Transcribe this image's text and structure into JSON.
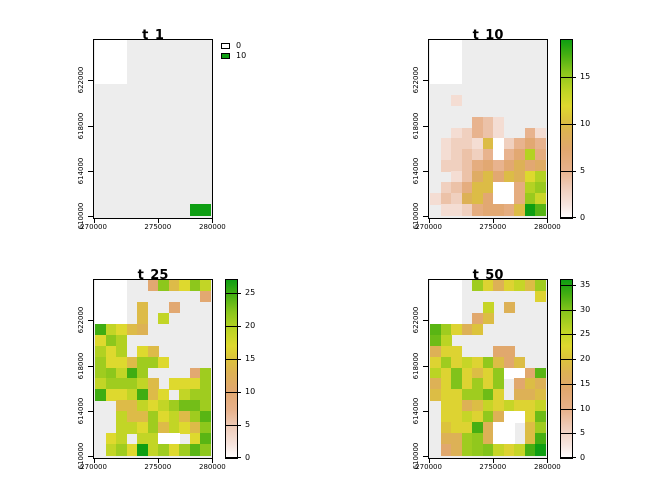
{
  "figure": {
    "background": "#FFFFFF",
    "na_color": "#EDEDED",
    "box_border_color": "#000000",
    "text_color": "#000000"
  },
  "palette_stops": [
    [
      0.0,
      "#FFFFFF"
    ],
    [
      0.08,
      "#F6E3DC"
    ],
    [
      0.17,
      "#EFCDBB"
    ],
    [
      0.27,
      "#E7B18B"
    ],
    [
      0.38,
      "#E1A76F"
    ],
    [
      0.48,
      "#DDB254"
    ],
    [
      0.56,
      "#DCC43B"
    ],
    [
      0.63,
      "#DED92E"
    ],
    [
      0.72,
      "#BCD424"
    ],
    [
      0.82,
      "#8AC61C"
    ],
    [
      0.91,
      "#4AB012"
    ],
    [
      1.0,
      "#0E9E12"
    ]
  ],
  "chart_data": [
    {
      "type": "heatmap",
      "title": "t_1",
      "x_tick_labels": [
        "270000",
        "275000",
        "280000"
      ],
      "y_tick_labels": [
        "610000",
        "614000",
        "618000",
        "622000"
      ],
      "rows": 16,
      "cols": 11,
      "legend": {
        "kind": "classes",
        "max": 10,
        "items": [
          {
            "label": "0",
            "color": "#FFFFFF"
          },
          {
            "label": "10",
            "color": "#0E9E12"
          }
        ]
      },
      "values": [
        [
          0,
          0,
          0,
          null,
          null,
          null,
          null,
          null,
          null,
          null,
          null
        ],
        [
          0,
          0,
          0,
          null,
          null,
          null,
          null,
          null,
          null,
          null,
          null
        ],
        [
          0,
          0,
          0,
          null,
          null,
          null,
          null,
          null,
          null,
          null,
          null
        ],
        [
          0,
          0,
          0,
          null,
          null,
          null,
          null,
          null,
          null,
          null,
          null
        ],
        [
          null,
          null,
          null,
          null,
          null,
          null,
          null,
          null,
          null,
          null,
          null
        ],
        [
          null,
          null,
          null,
          null,
          null,
          null,
          null,
          null,
          null,
          null,
          null
        ],
        [
          null,
          null,
          null,
          null,
          null,
          null,
          null,
          null,
          null,
          null,
          null
        ],
        [
          null,
          null,
          null,
          null,
          null,
          null,
          null,
          null,
          null,
          null,
          null
        ],
        [
          null,
          null,
          null,
          null,
          null,
          null,
          null,
          null,
          null,
          null,
          null
        ],
        [
          null,
          null,
          null,
          null,
          null,
          null,
          null,
          null,
          null,
          null,
          null
        ],
        [
          null,
          null,
          null,
          null,
          null,
          null,
          null,
          null,
          null,
          null,
          null
        ],
        [
          null,
          null,
          null,
          null,
          null,
          null,
          null,
          null,
          null,
          null,
          null
        ],
        [
          null,
          null,
          null,
          null,
          null,
          null,
          null,
          null,
          null,
          null,
          null
        ],
        [
          null,
          null,
          null,
          null,
          null,
          null,
          null,
          null,
          null,
          null,
          null
        ],
        [
          null,
          null,
          null,
          null,
          null,
          null,
          null,
          null,
          null,
          null,
          null
        ],
        [
          null,
          null,
          null,
          null,
          null,
          null,
          null,
          null,
          null,
          10,
          10
        ]
      ]
    },
    {
      "type": "heatmap",
      "title": "t_10",
      "x_tick_labels": [
        "270000",
        "275000",
        "280000"
      ],
      "y_tick_labels": [
        "610000",
        "614000",
        "618000",
        "622000"
      ],
      "rows": 16,
      "cols": 11,
      "legend": {
        "kind": "colorbar",
        "max": 19,
        "ticks": [
          0,
          5,
          10,
          15
        ]
      },
      "values": [
        [
          0,
          0,
          0,
          null,
          null,
          null,
          null,
          null,
          null,
          null,
          null
        ],
        [
          0,
          0,
          0,
          null,
          null,
          null,
          null,
          null,
          null,
          null,
          null
        ],
        [
          0,
          0,
          0,
          null,
          null,
          null,
          null,
          null,
          null,
          null,
          null
        ],
        [
          0,
          0,
          0,
          null,
          null,
          null,
          null,
          null,
          null,
          null,
          null
        ],
        [
          null,
          null,
          null,
          null,
          null,
          null,
          null,
          null,
          null,
          null,
          null
        ],
        [
          null,
          null,
          2,
          null,
          null,
          null,
          null,
          null,
          null,
          null,
          null
        ],
        [
          null,
          null,
          null,
          null,
          null,
          null,
          null,
          null,
          null,
          null,
          null
        ],
        [
          null,
          null,
          null,
          null,
          5,
          4,
          2,
          null,
          null,
          null,
          null
        ],
        [
          null,
          null,
          2,
          3,
          5,
          4,
          2,
          null,
          null,
          5,
          2
        ],
        [
          null,
          2,
          3,
          3,
          2,
          10,
          0,
          3,
          5,
          7,
          5
        ],
        [
          null,
          2,
          3,
          4,
          3,
          5,
          0,
          5,
          7,
          14,
          6
        ],
        [
          null,
          3,
          3,
          4,
          6,
          7,
          5,
          7,
          9,
          7,
          8
        ],
        [
          null,
          null,
          2,
          4,
          8,
          10,
          7,
          10,
          9,
          12,
          14
        ],
        [
          null,
          3,
          4,
          6,
          10,
          10,
          0,
          0,
          6,
          14,
          15
        ],
        [
          2,
          4,
          3,
          9,
          10,
          7,
          0,
          0,
          6,
          15,
          13
        ],
        [
          null,
          2,
          2,
          3,
          6,
          7,
          7,
          6,
          10,
          19,
          17
        ]
      ]
    },
    {
      "type": "heatmap",
      "title": "t_25",
      "x_tick_labels": [
        "270000",
        "275000",
        "280000"
      ],
      "y_tick_labels": [
        "610000",
        "614000",
        "618000",
        "622000"
      ],
      "rows": 16,
      "cols": 11,
      "legend": {
        "kind": "colorbar",
        "max": 27,
        "ticks": [
          0,
          5,
          10,
          15,
          20,
          25
        ]
      },
      "values": [
        [
          0,
          0,
          0,
          null,
          null,
          10,
          22,
          14,
          17,
          22,
          19
        ],
        [
          0,
          0,
          0,
          null,
          null,
          null,
          null,
          null,
          null,
          null,
          10
        ],
        [
          0,
          0,
          0,
          null,
          14,
          null,
          null,
          10,
          null,
          null,
          null
        ],
        [
          0,
          0,
          0,
          null,
          14,
          null,
          19,
          null,
          null,
          null,
          null
        ],
        [
          25,
          19,
          17,
          14,
          13,
          null,
          null,
          null,
          null,
          null,
          null
        ],
        [
          17,
          22,
          20,
          null,
          null,
          null,
          null,
          null,
          null,
          null,
          null
        ],
        [
          20,
          17,
          20,
          null,
          17,
          14,
          null,
          null,
          null,
          null,
          null
        ],
        [
          21,
          17,
          17,
          14,
          21,
          21,
          17,
          null,
          null,
          null,
          null
        ],
        [
          21,
          22,
          19,
          25,
          21,
          null,
          null,
          null,
          null,
          10,
          21
        ],
        [
          19,
          21,
          21,
          21,
          19,
          14,
          null,
          17,
          17,
          17,
          21
        ],
        [
          25,
          17,
          17,
          19,
          25,
          14,
          17,
          null,
          19,
          21,
          21
        ],
        [
          null,
          null,
          14,
          14,
          19,
          17,
          19,
          21,
          23,
          23,
          21
        ],
        [
          null,
          null,
          19,
          14,
          14,
          21,
          17,
          19,
          14,
          21,
          24
        ],
        [
          null,
          null,
          19,
          19,
          17,
          21,
          14,
          19,
          17,
          14,
          22
        ],
        [
          null,
          17,
          19,
          null,
          19,
          19,
          0,
          0,
          null,
          17,
          24
        ],
        [
          null,
          19,
          21,
          17,
          27,
          19,
          21,
          17,
          21,
          24,
          22
        ]
      ]
    },
    {
      "type": "heatmap",
      "title": "t_50",
      "x_tick_labels": [
        "270000",
        "275000",
        "280000"
      ],
      "y_tick_labels": [
        "610000",
        "614000",
        "618000",
        "622000"
      ],
      "rows": 16,
      "cols": 11,
      "legend": {
        "kind": "colorbar",
        "max": 36,
        "ticks": [
          0,
          5,
          10,
          15,
          20,
          25,
          30,
          35
        ]
      },
      "values": [
        [
          0,
          0,
          0,
          null,
          28,
          22,
          17,
          22,
          25,
          19,
          28
        ],
        [
          0,
          0,
          0,
          null,
          null,
          null,
          null,
          null,
          null,
          null,
          22
        ],
        [
          0,
          0,
          0,
          null,
          null,
          25,
          null,
          17,
          null,
          null,
          null
        ],
        [
          0,
          0,
          0,
          null,
          14,
          19,
          null,
          null,
          null,
          null,
          null
        ],
        [
          32,
          28,
          22,
          17,
          20,
          null,
          null,
          null,
          null,
          null,
          null
        ],
        [
          31,
          26,
          null,
          null,
          null,
          null,
          null,
          null,
          null,
          null,
          null
        ],
        [
          17,
          22,
          22,
          null,
          null,
          null,
          14,
          14,
          null,
          null,
          null
        ],
        [
          22,
          28,
          22,
          25,
          22,
          29,
          19,
          14,
          19,
          null,
          null
        ],
        [
          26,
          22,
          30,
          22,
          19,
          22,
          29,
          0,
          0,
          14,
          32
        ],
        [
          17,
          22,
          30,
          22,
          28,
          22,
          29,
          null,
          14,
          19,
          17
        ],
        [
          19,
          22,
          22,
          28,
          28,
          31,
          22,
          null,
          17,
          17,
          19
        ],
        [
          null,
          22,
          22,
          17,
          19,
          25,
          22,
          25,
          22,
          22,
          25
        ],
        [
          null,
          22,
          22,
          25,
          22,
          29,
          17,
          0,
          0,
          22,
          31
        ],
        [
          null,
          20,
          22,
          22,
          33,
          17,
          0,
          0,
          null,
          19,
          28
        ],
        [
          null,
          17,
          17,
          28,
          29,
          17,
          0,
          0,
          null,
          19,
          33
        ],
        [
          null,
          14,
          17,
          28,
          29,
          30,
          25,
          22,
          25,
          33,
          36
        ]
      ]
    }
  ]
}
